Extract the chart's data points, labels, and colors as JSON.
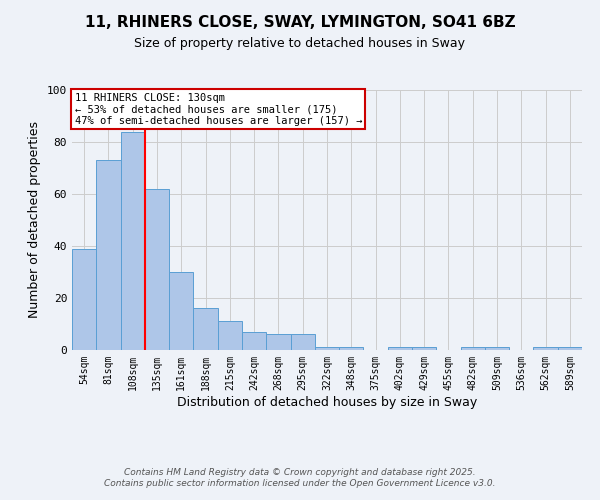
{
  "title": "11, RHINERS CLOSE, SWAY, LYMINGTON, SO41 6BZ",
  "subtitle": "Size of property relative to detached houses in Sway",
  "xlabel": "Distribution of detached houses by size in Sway",
  "ylabel": "Number of detached properties",
  "categories": [
    "54sqm",
    "81sqm",
    "108sqm",
    "135sqm",
    "161sqm",
    "188sqm",
    "215sqm",
    "242sqm",
    "268sqm",
    "295sqm",
    "322sqm",
    "348sqm",
    "375sqm",
    "402sqm",
    "429sqm",
    "455sqm",
    "482sqm",
    "509sqm",
    "536sqm",
    "562sqm",
    "589sqm"
  ],
  "values": [
    39,
    73,
    84,
    62,
    30,
    16,
    11,
    7,
    6,
    6,
    1,
    1,
    0,
    1,
    1,
    0,
    1,
    1,
    0,
    1,
    1
  ],
  "bar_color": "#aec6e8",
  "bar_edge_color": "#5a9fd4",
  "red_line_x": 2.5,
  "red_line_label": "11 RHINERS CLOSE: 130sqm",
  "annotation_line1": "← 53% of detached houses are smaller (175)",
  "annotation_line2": "47% of semi-detached houses are larger (157) →",
  "annotation_box_color": "#ffffff",
  "annotation_box_edge": "#cc0000",
  "ylim": [
    0,
    100
  ],
  "yticks": [
    0,
    20,
    40,
    60,
    80,
    100
  ],
  "grid_color": "#cccccc",
  "footer_line1": "Contains HM Land Registry data © Crown copyright and database right 2025.",
  "footer_line2": "Contains public sector information licensed under the Open Government Licence v3.0.",
  "bg_color": "#eef2f8"
}
